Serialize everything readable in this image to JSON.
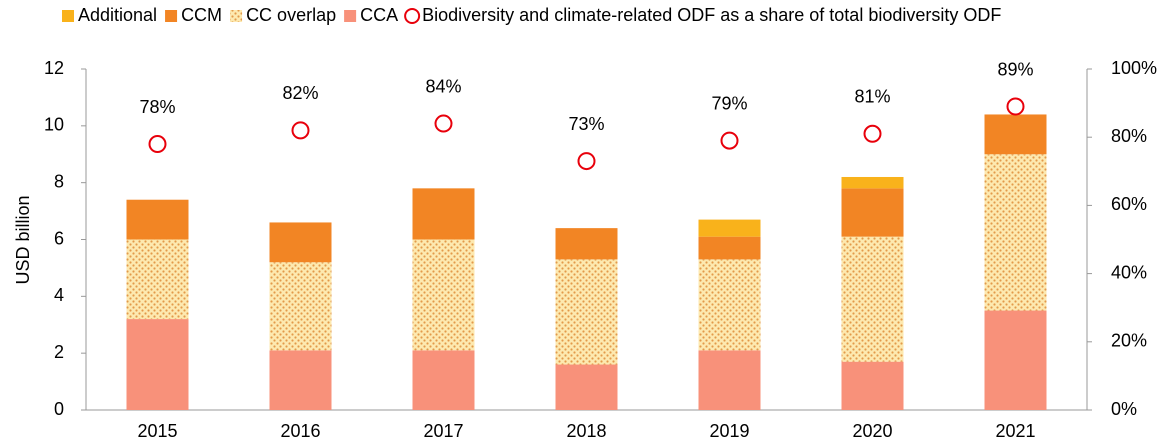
{
  "chart_data": {
    "type": "bar",
    "stacked": true,
    "categories": [
      "2015",
      "2016",
      "2017",
      "2018",
      "2019",
      "2020",
      "2021"
    ],
    "ylabel": "USD billion",
    "ylim": [
      0,
      12
    ],
    "yticks": [
      0,
      2,
      4,
      6,
      8,
      10,
      12
    ],
    "y2lim": [
      0,
      100
    ],
    "y2ticks": [
      {
        "value": 0,
        "label": "0%"
      },
      {
        "value": 20,
        "label": "20%"
      },
      {
        "value": 40,
        "label": "40%"
      },
      {
        "value": 60,
        "label": "60%"
      },
      {
        "value": 80,
        "label": "80%"
      },
      {
        "value": 100,
        "label": "100%"
      }
    ],
    "legend": "top",
    "series": [
      {
        "name": "CCA",
        "color": "#f8917a",
        "values": [
          3.2,
          2.1,
          2.1,
          1.6,
          2.1,
          1.7,
          3.5
        ]
      },
      {
        "name": "CC overlap",
        "color": "#fde9b0",
        "pattern": "dotted",
        "pattern_color": "#e39a4a",
        "values": [
          2.8,
          3.1,
          3.9,
          3.7,
          3.2,
          4.4,
          5.5
        ]
      },
      {
        "name": "CCM",
        "color": "#f28524",
        "values": [
          1.4,
          1.4,
          1.8,
          1.1,
          0.8,
          1.7,
          1.4
        ]
      },
      {
        "name": "Additional",
        "color": "#f9b21b",
        "values": [
          0,
          0,
          0,
          0,
          0.6,
          0.4,
          0
        ]
      },
      {
        "name": "Biodiversity and climate-related ODF as a share of total biodiversity ODF",
        "type": "scatter",
        "axis": "y2",
        "color": "#e8000b",
        "values": [
          78,
          82,
          84,
          73,
          79,
          81,
          89
        ],
        "value_labels": [
          "78%",
          "82%",
          "84%",
          "73%",
          "79%",
          "81%",
          "89%"
        ]
      }
    ],
    "legend_order": [
      3,
      2,
      1,
      0,
      4
    ]
  }
}
